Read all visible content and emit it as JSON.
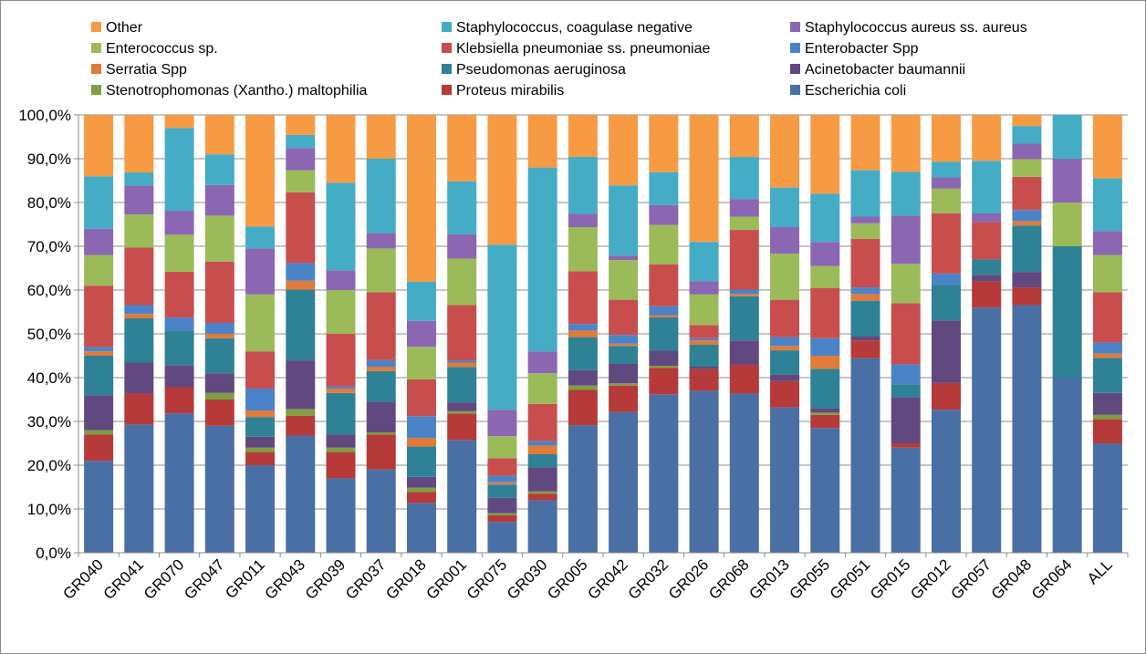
{
  "chart_data": {
    "type": "bar",
    "stacked": true,
    "percent": true,
    "ylim": [
      0,
      100
    ],
    "yticks": [
      "0,0%",
      "10,0%",
      "20,0%",
      "30,0%",
      "40,0%",
      "50,0%",
      "60,0%",
      "70,0%",
      "80,0%",
      "90,0%",
      "100,0%"
    ],
    "grid": true,
    "legend_position": "top",
    "categories": [
      "GR040",
      "GR041",
      "GR070",
      "GR047",
      "GR011",
      "GR043",
      "GR039",
      "GR037",
      "GR018",
      "GR001",
      "GR075",
      "GR030",
      "GR005",
      "GR042",
      "GR032",
      "GR026",
      "GR068",
      "GR013",
      "GR055",
      "GR051",
      "GR015",
      "GR012",
      "GR057",
      "GR048",
      "GR064",
      "ALL"
    ],
    "legend_order": [
      "Other",
      "Staphylococcus, coagulase negative",
      "Staphylococcus aureus ss. aureus",
      "Enterococcus sp.",
      "Klebsiella pneumoniae ss. pneumoniae",
      "Enterobacter Spp",
      "Serratia Spp",
      "Pseudomonas aeruginosa",
      "Acinetobacter baumannii",
      "Stenotrophomonas (Xantho.) maltophilia",
      "Proteus mirabilis",
      "Escherichia coli"
    ],
    "series": [
      {
        "name": "Escherichia coli",
        "color": "#4A6FA5",
        "values": [
          21,
          29,
          32,
          29,
          20,
          26.5,
          17,
          19,
          11.5,
          25.5,
          7,
          12,
          29,
          32,
          36,
          37,
          36,
          33,
          28.5,
          44,
          24,
          32,
          56,
          56,
          40,
          25
        ]
      },
      {
        "name": "Proteus mirabilis",
        "color": "#B53A39",
        "values": [
          6,
          7,
          6,
          6,
          3,
          4.5,
          6,
          8,
          2.5,
          6,
          1.5,
          1.5,
          8,
          6,
          6,
          5,
          6.5,
          6,
          3,
          4,
          1,
          6,
          6,
          4,
          0,
          5.5
        ]
      },
      {
        "name": "Stenotrophomonas (Xantho.) maltophilia",
        "color": "#7E9F43",
        "values": [
          1,
          0,
          0,
          1.5,
          1,
          1.5,
          1,
          0.5,
          1,
          0.5,
          0.5,
          0.5,
          1,
          0.5,
          0.5,
          0,
          0,
          0,
          0.5,
          0,
          0,
          0,
          0,
          0,
          0,
          1
        ]
      },
      {
        "name": "Acinetobacter baumannii",
        "color": "#61497F",
        "values": [
          8,
          7,
          5,
          4.5,
          2.5,
          11,
          3,
          7,
          2.5,
          2,
          3.5,
          5.5,
          3.5,
          4.5,
          3.5,
          0.5,
          5.5,
          1.5,
          1,
          1,
          10.5,
          14,
          1.5,
          3.5,
          0,
          5
        ]
      },
      {
        "name": "Pseudomonas aeruginosa",
        "color": "#2F8196",
        "values": [
          9,
          10,
          8,
          8,
          4.5,
          16,
          9.5,
          7,
          7,
          8,
          3,
          3,
          7.5,
          4,
          7.5,
          5,
          10,
          5.5,
          9,
          8,
          3,
          8,
          3.5,
          10.5,
          30,
          8
        ]
      },
      {
        "name": "Serratia Spp",
        "color": "#E07B39",
        "values": [
          1,
          1,
          0,
          1,
          1.5,
          2,
          1,
          1,
          2,
          1,
          0.5,
          2,
          1.5,
          0.5,
          0.5,
          1,
          0.5,
          1,
          3,
          1.5,
          0,
          0,
          0,
          1,
          0,
          1
        ]
      },
      {
        "name": "Enterobacter Spp",
        "color": "#4B83C9",
        "values": [
          1,
          2,
          3,
          2.5,
          5,
          4,
          0.5,
          1.5,
          5,
          0.5,
          1.5,
          1,
          1.5,
          2,
          2,
          0.5,
          1,
          2,
          4,
          1.5,
          4.5,
          2.5,
          0,
          2.5,
          0,
          2.5
        ]
      },
      {
        "name": "Klebsiella pneumoniae ss. pneumoniae",
        "color": "#C84E4E",
        "values": [
          14,
          13,
          10.5,
          14,
          8.5,
          16,
          12,
          15.5,
          8.5,
          12.5,
          4,
          8.5,
          12,
          8,
          9.5,
          3,
          13.5,
          8.5,
          11.5,
          11,
          14,
          13.5,
          8.5,
          7.5,
          0,
          11.5
        ]
      },
      {
        "name": "Enterococcus sp.",
        "color": "#9BBB59",
        "values": [
          7,
          7.5,
          8.5,
          10.5,
          13,
          5,
          10,
          10,
          7.5,
          10.5,
          5,
          7,
          10,
          9,
          9,
          7,
          3,
          10.5,
          5,
          3.5,
          9,
          5.5,
          0,
          4,
          10,
          8.5
        ]
      },
      {
        "name": "Staphylococcus aureus ss. aureus",
        "color": "#8B66B3",
        "values": [
          6,
          6.5,
          5.5,
          7,
          10.5,
          5,
          4.5,
          3.5,
          6,
          5.5,
          6,
          5,
          3,
          1,
          4.5,
          3,
          4,
          6,
          5.5,
          1.5,
          11,
          2.5,
          2,
          3.5,
          10,
          5.5
        ]
      },
      {
        "name": "Staphylococcus, coagulase negative",
        "color": "#45ACC6",
        "values": [
          12,
          3,
          19,
          7,
          5,
          3,
          20,
          17,
          9,
          12,
          37.5,
          42,
          13,
          16,
          7.5,
          9,
          9.5,
          9,
          11,
          10.5,
          10,
          3.5,
          12,
          4,
          10,
          12
        ]
      },
      {
        "name": "Other",
        "color": "#F79A44",
        "values": [
          14,
          13,
          3,
          9,
          25.5,
          4.5,
          15.5,
          10,
          38.5,
          15,
          29.5,
          12,
          9.5,
          16,
          13,
          29,
          9.5,
          16.5,
          18,
          12.5,
          13,
          10.5,
          10.5,
          2.5,
          0,
          14.5
        ]
      }
    ]
  }
}
